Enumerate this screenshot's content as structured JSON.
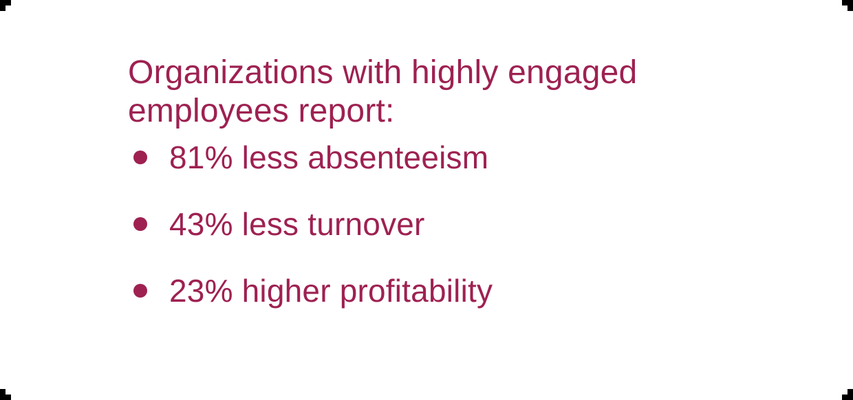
{
  "slide": {
    "heading": {
      "full_text": "Organizations with highly engaged employees report:",
      "lines": [
        "Organizations with highly engaged",
        "employees report:"
      ]
    },
    "bullets": [
      {
        "text": "81% less absenteeism"
      },
      {
        "text": "43% less turnover"
      },
      {
        "text": "23% higher profitability"
      }
    ],
    "colors": {
      "text": "#9e2151",
      "background": "#ffffff",
      "crop_marks": "#000000"
    }
  }
}
